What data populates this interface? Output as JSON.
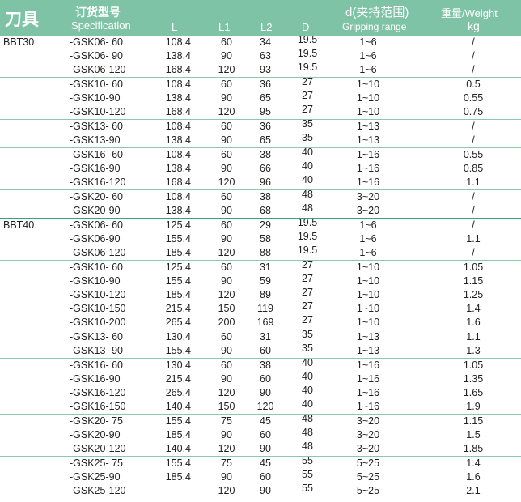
{
  "header": {
    "tool": "刀具",
    "spec_cn": "订货型号",
    "spec_en": "Specification",
    "L": "L",
    "L1": "L1",
    "L2": "L2",
    "D": "D",
    "grip_cn": "d(夹持范围)",
    "grip_en": "Gripping range",
    "weight_cn": "重量/Weight",
    "weight_unit": "kg"
  },
  "rows": [
    {
      "tool": "BBT30",
      "spec": "-GSK06- 60",
      "L": "108.4",
      "L1": "60",
      "L2": "34",
      "D": "19.5",
      "d": "1~6",
      "w": "/"
    },
    {
      "tool": "",
      "spec": "-GSK06- 90",
      "L": "138.4",
      "L1": "90",
      "L2": "63",
      "D": "19.5",
      "d": "1~6",
      "w": "/"
    },
    {
      "tool": "",
      "spec": "-GSK06-120",
      "L": "168.4",
      "L1": "120",
      "L2": "93",
      "D": "19.5",
      "d": "1~6",
      "w": "/"
    },
    {
      "tool": "",
      "spec": "-GSK10- 60",
      "L": "108.4",
      "L1": "60",
      "L2": "36",
      "D": "27",
      "d": "1~10",
      "w": "0.5"
    },
    {
      "tool": "",
      "spec": "-GSK10-90",
      "L": "138.4",
      "L1": "90",
      "L2": "65",
      "D": "27",
      "d": "1~10",
      "w": "0.55"
    },
    {
      "tool": "",
      "spec": "-GSK10-120",
      "L": "168.4",
      "L1": "120",
      "L2": "95",
      "D": "27",
      "d": "1~10",
      "w": "0.75"
    },
    {
      "tool": "",
      "spec": "-GSK13- 60",
      "L": "108.4",
      "L1": "60",
      "L2": "36",
      "D": "35",
      "d": "1~13",
      "w": "/"
    },
    {
      "tool": "",
      "spec": "-GSK13-90",
      "L": "138.4",
      "L1": "90",
      "L2": "65",
      "D": "35",
      "d": "1~13",
      "w": "/"
    },
    {
      "tool": "",
      "spec": "-GSK16- 60",
      "L": "108.4",
      "L1": "60",
      "L2": "38",
      "D": "40",
      "d": "1~16",
      "w": "0.55"
    },
    {
      "tool": "",
      "spec": "-GSK16-90",
      "L": "138.4",
      "L1": "90",
      "L2": "66",
      "D": "40",
      "d": "1~16",
      "w": "0.85"
    },
    {
      "tool": "",
      "spec": "-GSK16-120",
      "L": "168.4",
      "L1": "120",
      "L2": "96",
      "D": "40",
      "d": "1~16",
      "w": "1.1"
    },
    {
      "tool": "",
      "spec": "-GSK20- 60",
      "L": "108.4",
      "L1": "60",
      "L2": "38",
      "D": "48",
      "d": "3~20",
      "w": "/"
    },
    {
      "tool": "",
      "spec": "-GSK20-90",
      "L": "138.4",
      "L1": "90",
      "L2": "68",
      "D": "48",
      "d": "3~20",
      "w": "/"
    },
    {
      "tool": "BBT40",
      "spec": "-GSK06- 60",
      "L": "125.4",
      "L1": "60",
      "L2": "29",
      "D": "19.5",
      "d": "1~6",
      "w": "/"
    },
    {
      "tool": "",
      "spec": "-GSK06-90",
      "L": "155.4",
      "L1": "90",
      "L2": "58",
      "D": "19.5",
      "d": "1~6",
      "w": "1.1"
    },
    {
      "tool": "",
      "spec": "-GSK06-120",
      "L": "185.4",
      "L1": "120",
      "L2": "88",
      "D": "19.5",
      "d": "1~6",
      "w": "/"
    },
    {
      "tool": "",
      "spec": "-GSK10- 60",
      "L": "125.4",
      "L1": "60",
      "L2": "31",
      "D": "27",
      "d": "1~10",
      "w": "1.05"
    },
    {
      "tool": "",
      "spec": "-GSK10-90",
      "L": "155.4",
      "L1": "90",
      "L2": "59",
      "D": "27",
      "d": "1~10",
      "w": "1.15"
    },
    {
      "tool": "",
      "spec": "-GSK10-120",
      "L": "185.4",
      "L1": "120",
      "L2": "89",
      "D": "27",
      "d": "1~10",
      "w": "1.25"
    },
    {
      "tool": "",
      "spec": "-GSK10-150",
      "L": "215.4",
      "L1": "150",
      "L2": "119",
      "D": "27",
      "d": "1~10",
      "w": "1.4"
    },
    {
      "tool": "",
      "spec": "-GSK10-200",
      "L": "265.4",
      "L1": "200",
      "L2": "169",
      "D": "27",
      "d": "1~10",
      "w": "1.6"
    },
    {
      "tool": "",
      "spec": "-GSK13- 60",
      "L": "130.4",
      "L1": "60",
      "L2": "31",
      "D": "35",
      "d": "1~13",
      "w": "1.1"
    },
    {
      "tool": "",
      "spec": "-GSK13- 90",
      "L": "155.4",
      "L1": "90",
      "L2": "60",
      "D": "35",
      "d": "1~13",
      "w": "1.3"
    },
    {
      "tool": "",
      "spec": "-GSK16- 60",
      "L": "130.4",
      "L1": "60",
      "L2": "38",
      "D": "40",
      "d": "1~16",
      "w": "1.05"
    },
    {
      "tool": "",
      "spec": "-GSK16-90",
      "L": "215.4",
      "L1": "90",
      "L2": "60",
      "D": "40",
      "d": "1~16",
      "w": "1.35"
    },
    {
      "tool": "",
      "spec": "-GSK16-120",
      "L": "265.4",
      "L1": "120",
      "L2": "90",
      "D": "40",
      "d": "1~16",
      "w": "1.65"
    },
    {
      "tool": "",
      "spec": "-GSK16-150",
      "L": "140.4",
      "L1": "150",
      "L2": "120",
      "D": "40",
      "d": "1~16",
      "w": "1.9"
    },
    {
      "tool": "",
      "spec": "-GSK20- 75",
      "L": "155.4",
      "L1": "75",
      "L2": "45",
      "D": "48",
      "d": "3~20",
      "w": "1.15"
    },
    {
      "tool": "",
      "spec": "-GSK20-90",
      "L": "185.4",
      "L1": "90",
      "L2": "60",
      "D": "48",
      "d": "3~20",
      "w": "1.5"
    },
    {
      "tool": "",
      "spec": "-GSK20-120",
      "L": "140.4",
      "L1": "120",
      "L2": "90",
      "D": "48",
      "d": "3~20",
      "w": "1.85"
    },
    {
      "tool": "",
      "spec": "-GSK25- 75",
      "L": "155.4",
      "L1": "75",
      "L2": "45",
      "D": "55",
      "d": "5~25",
      "w": "1.4"
    },
    {
      "tool": "",
      "spec": "-GSK25-90",
      "L": "185.4",
      "L1": "90",
      "L2": "60",
      "D": "55",
      "d": "5~25",
      "w": "1.6"
    },
    {
      "tool": "",
      "spec": "-GSK25-120",
      "L": "",
      "L1": "120",
      "L2": "90",
      "D": "55",
      "d": "5~25",
      "w": "2.1"
    }
  ]
}
